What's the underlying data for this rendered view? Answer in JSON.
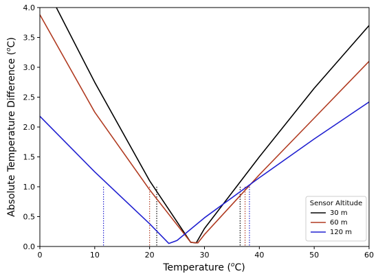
{
  "chart_data": {
    "type": "line",
    "xlabel_main": "Temperature (",
    "xlabel_unit": "o",
    "xlabel_tail": "C)",
    "ylabel_main": "Absolute Temperature Difference (",
    "ylabel_unit": "o",
    "ylabel_tail": "C)",
    "xlim": [
      0,
      60
    ],
    "ylim": [
      0,
      4.0
    ],
    "xticks": [
      0,
      10,
      20,
      30,
      40,
      50,
      60
    ],
    "yticks": [
      0.0,
      0.5,
      1.0,
      1.5,
      2.0,
      2.5,
      3.0,
      3.5,
      4.0
    ],
    "xtick_labels": [
      "0",
      "10",
      "20",
      "30",
      "40",
      "50",
      "60"
    ],
    "ytick_labels": [
      "0.0",
      "0.5",
      "1.0",
      "1.5",
      "2.0",
      "2.5",
      "3.0",
      "3.5",
      "4.0"
    ],
    "legend_title": "Sensor Altitude",
    "legend_position": "lower-right",
    "grid": false,
    "series": [
      {
        "name": "30 m",
        "color": "#000000",
        "points": [
          [
            3.0,
            4.0
          ],
          [
            10,
            2.75
          ],
          [
            20,
            1.1
          ],
          [
            27.5,
            0.07
          ],
          [
            28.5,
            0.06
          ],
          [
            30,
            0.3
          ],
          [
            40,
            1.5
          ],
          [
            50,
            2.65
          ],
          [
            60,
            3.7
          ]
        ],
        "crossings_at_1": [
          21.3,
          36.5
        ]
      },
      {
        "name": "60 m",
        "color": "#b03a20",
        "points": [
          [
            0,
            3.88
          ],
          [
            10,
            2.25
          ],
          [
            20,
            0.95
          ],
          [
            27.5,
            0.07
          ],
          [
            28.8,
            0.06
          ],
          [
            30,
            0.2
          ],
          [
            40,
            1.2
          ],
          [
            50,
            2.15
          ],
          [
            60,
            3.1
          ]
        ],
        "crossings_at_1": [
          20.0,
          37.4
        ]
      },
      {
        "name": "120 m",
        "color": "#1f1fd0",
        "points": [
          [
            0,
            2.18
          ],
          [
            10,
            1.25
          ],
          [
            20,
            0.38
          ],
          [
            23.5,
            0.05
          ],
          [
            25,
            0.1
          ],
          [
            30,
            0.48
          ],
          [
            40,
            1.15
          ],
          [
            50,
            1.8
          ],
          [
            60,
            2.42
          ]
        ],
        "crossings_at_1": [
          11.6,
          38.2
        ]
      }
    ]
  }
}
